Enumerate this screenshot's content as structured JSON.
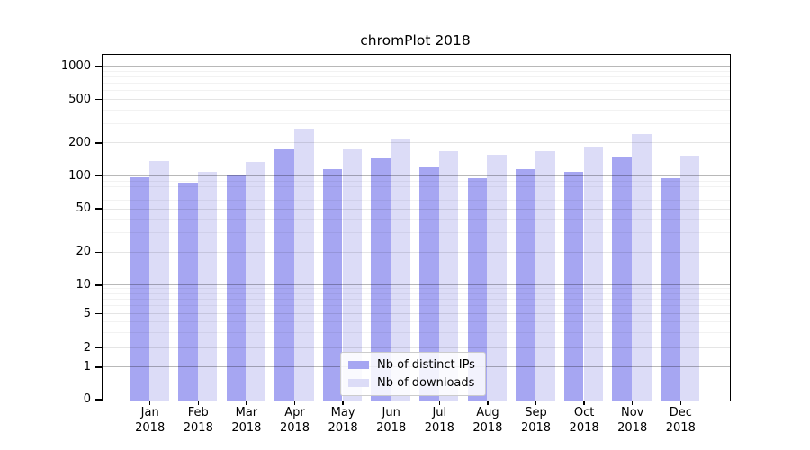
{
  "chart_data": {
    "type": "bar",
    "title": "chromPlot 2018",
    "categories": [
      {
        "month": "Jan",
        "year": "2018"
      },
      {
        "month": "Feb",
        "year": "2018"
      },
      {
        "month": "Mar",
        "year": "2018"
      },
      {
        "month": "Apr",
        "year": "2018"
      },
      {
        "month": "May",
        "year": "2018"
      },
      {
        "month": "Jun",
        "year": "2018"
      },
      {
        "month": "Jul",
        "year": "2018"
      },
      {
        "month": "Aug",
        "year": "2018"
      },
      {
        "month": "Sep",
        "year": "2018"
      },
      {
        "month": "Oct",
        "year": "2018"
      },
      {
        "month": "Nov",
        "year": "2018"
      },
      {
        "month": "Dec",
        "year": "2018"
      }
    ],
    "series": [
      {
        "key": "distinct-ips",
        "name": "Nb of distinct IPs",
        "color": "#a6a6f2",
        "values": [
          97,
          86,
          101,
          172,
          114,
          144,
          118,
          95,
          115,
          108,
          145,
          94
        ]
      },
      {
        "key": "downloads",
        "name": "Nb of downloads",
        "color": "#dcdcf7",
        "values": [
          135,
          107,
          134,
          269,
          172,
          217,
          167,
          154,
          167,
          184,
          240,
          151
        ]
      }
    ],
    "yaxis": {
      "scale": "log",
      "tick_labels": [
        "1000",
        "500",
        "200",
        "100",
        "50",
        "20",
        "10",
        "5",
        "2",
        "1",
        "0"
      ],
      "tick_values": [
        1000,
        500,
        200,
        100,
        50,
        20,
        10,
        5,
        2,
        1,
        0
      ],
      "ylim": [
        0,
        1300
      ]
    },
    "legend": {
      "position": "lower center",
      "entries": [
        "Nb of distinct IPs",
        "Nb of downloads"
      ]
    },
    "grid": true
  }
}
